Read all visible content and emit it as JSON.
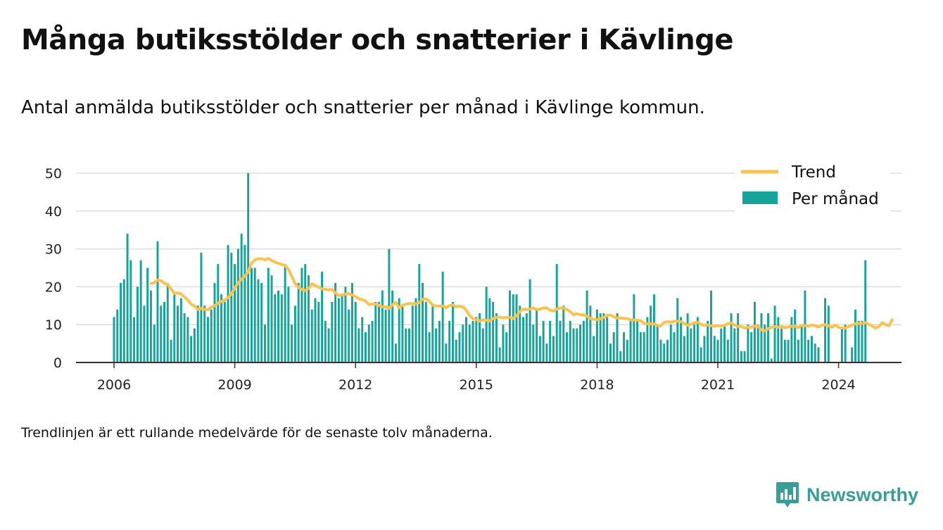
{
  "title": "Många butiksstölder och snatterier i Kävlinge",
  "subtitle": "Antal anmälda butiksstölder och snatterier per månad i Kävlinge kommun.",
  "footnote": "Trendlinjen är ett rullande medelvärde för de senaste tolv månaderna.",
  "brand": "Newsworthy",
  "colors": {
    "bar": "#16a39a",
    "trend": "#fbc24e",
    "grid": "#dddddd",
    "axis": "#333333",
    "brand": "#3b9d97"
  },
  "chart_data": {
    "type": "bar",
    "title": "Många butiksstölder och snatterier i Kävlinge",
    "xlabel": "",
    "ylabel": "",
    "start": "2006-01",
    "ylim": [
      0,
      50
    ],
    "yticks": [
      0,
      10,
      20,
      30,
      40,
      50
    ],
    "xticks": [
      "2006",
      "2009",
      "2012",
      "2015",
      "2018",
      "2021",
      "2024"
    ],
    "grid": true,
    "legend_position": "top-right",
    "series": [
      {
        "name": "Per månad",
        "type": "bar",
        "values": [
          12,
          14,
          21,
          22,
          34,
          27,
          12,
          20,
          27,
          15,
          25,
          19,
          10,
          32,
          15,
          16,
          21,
          6,
          18,
          15,
          17,
          13,
          12,
          7,
          9,
          15,
          29,
          15,
          12,
          14,
          21,
          26,
          18,
          16,
          31,
          29,
          26,
          30,
          34,
          31,
          50,
          25,
          25,
          22,
          21,
          10,
          25,
          23,
          18,
          19,
          18,
          26,
          20,
          10,
          15,
          21,
          25,
          26,
          23,
          14,
          17,
          16,
          24,
          11,
          9,
          16,
          21,
          17,
          18,
          20,
          14,
          21,
          16,
          9,
          12,
          8,
          10,
          11,
          16,
          16,
          19,
          14,
          30,
          19,
          5,
          17,
          15,
          9,
          9,
          15,
          17,
          26,
          21,
          16,
          8,
          15,
          9,
          11,
          24,
          5,
          11,
          16,
          6,
          8,
          10,
          12,
          10,
          11,
          12,
          13,
          9,
          20,
          17,
          16,
          13,
          4,
          10,
          8,
          19,
          18,
          18,
          15,
          12,
          13,
          22,
          10,
          14,
          7,
          11,
          5,
          11,
          7,
          26,
          11,
          15,
          8,
          11,
          9,
          9,
          10,
          11,
          19,
          15,
          7,
          14,
          13,
          13,
          12,
          5,
          8,
          13,
          3,
          8,
          6,
          11,
          18,
          11,
          8,
          8,
          12,
          15,
          18,
          10,
          6,
          5,
          6,
          10,
          8,
          17,
          12,
          7,
          13,
          9,
          10,
          12,
          4,
          7,
          11,
          19,
          7,
          6,
          9,
          10,
          6,
          13,
          9,
          13,
          3,
          3,
          10,
          8,
          16,
          10,
          13,
          10,
          13,
          1,
          15,
          12,
          9,
          6,
          6,
          12,
          14,
          6,
          10,
          19,
          6,
          7,
          5,
          4,
          0,
          17,
          15,
          0,
          0,
          0,
          9,
          10,
          0,
          4,
          14,
          11,
          11,
          27
        ]
      },
      {
        "name": "Trend",
        "type": "line",
        "start": "2006-12",
        "values": [
          20.9,
          21.0,
          21.8,
          21.6,
          20.9,
          20.6,
          19.4,
          18.2,
          18.4,
          18.1,
          17.3,
          16.5,
          15.4,
          14.9,
          14.0,
          14.3,
          14.0,
          13.9,
          14.6,
          15.0,
          15.7,
          16.1,
          16.5,
          17.1,
          18.1,
          19.7,
          21.0,
          22.0,
          22.8,
          23.9,
          26.3,
          27.1,
          27.4,
          27.4,
          27.1,
          27.5,
          26.9,
          26.5,
          26.2,
          25.9,
          25.6,
          24.6,
          22.7,
          20.8,
          19.8,
          19.3,
          19.0,
          19.5,
          20.8,
          20.3,
          19.9,
          19.4,
          19.3,
          19.2,
          19.3,
          18.4,
          17.7,
          17.8,
          18.1,
          18.2,
          17.8,
          17.4,
          16.8,
          16.6,
          16.2,
          15.3,
          15.4,
          15.4,
          15.1,
          14.7,
          14.7,
          14.3,
          15.2,
          15.9,
          14.4,
          15.1,
          15.4,
          15.6,
          15.5,
          15.5,
          15.8,
          16.7,
          16.8,
          16.2,
          15.1,
          14.9,
          14.9,
          14.9,
          14.5,
          15.0,
          15.2,
          14.7,
          14.9,
          14.7,
          13.8,
          12.4,
          11.6,
          11.3,
          11.0,
          11.3,
          11.1,
          11.0,
          11.6,
          11.9,
          12.0,
          11.8,
          11.9,
          11.9,
          11.6,
          12.4,
          13.4,
          14.1,
          14.0,
          14.1,
          14.4,
          14.0,
          14.1,
          14.4,
          14.4,
          13.8,
          13.6,
          14.1,
          14.4,
          14.4,
          14.0,
          13.4,
          12.6,
          12.9,
          12.6,
          12.6,
          12.2,
          11.6,
          11.4,
          11.3,
          11.5,
          11.9,
          12.5,
          12.5,
          12.1,
          11.7,
          11.8,
          11.6,
          11.6,
          11.3,
          11.2,
          11.2,
          11.0,
          10.4,
          10.2,
          10.2,
          10.2,
          9.8,
          9.6,
          10.6,
          10.8,
          10.6,
          10.9,
          10.9,
          10.8,
          10.3,
          9.8,
          10.1,
          10.5,
          10.6,
          10.1,
          9.8,
          9.9,
          9.7,
          9.6,
          9.8,
          9.6,
          9.8,
          10.3,
          10.4,
          9.9,
          9.5,
          9.5,
          9.1,
          9.3,
          9.3,
          9.6,
          9.6,
          8.6,
          8.4,
          8.9,
          9.3,
          9.5,
          9.3,
          9.5,
          9.2,
          9.4,
          9.6,
          9.6,
          9.2,
          9.8,
          9.7,
          9.6,
          9.9,
          9.7,
          9.4,
          9.8,
          10.0,
          9.7,
          9.3,
          9.9,
          9.3,
          9.1,
          9.1,
          9.5,
          9.9,
          10.2,
          10.3,
          10.3,
          10.5,
          10.1,
          9.6,
          9.1,
          9.5,
          10.5,
          10.0,
          9.7,
          11.3
        ]
      }
    ]
  }
}
